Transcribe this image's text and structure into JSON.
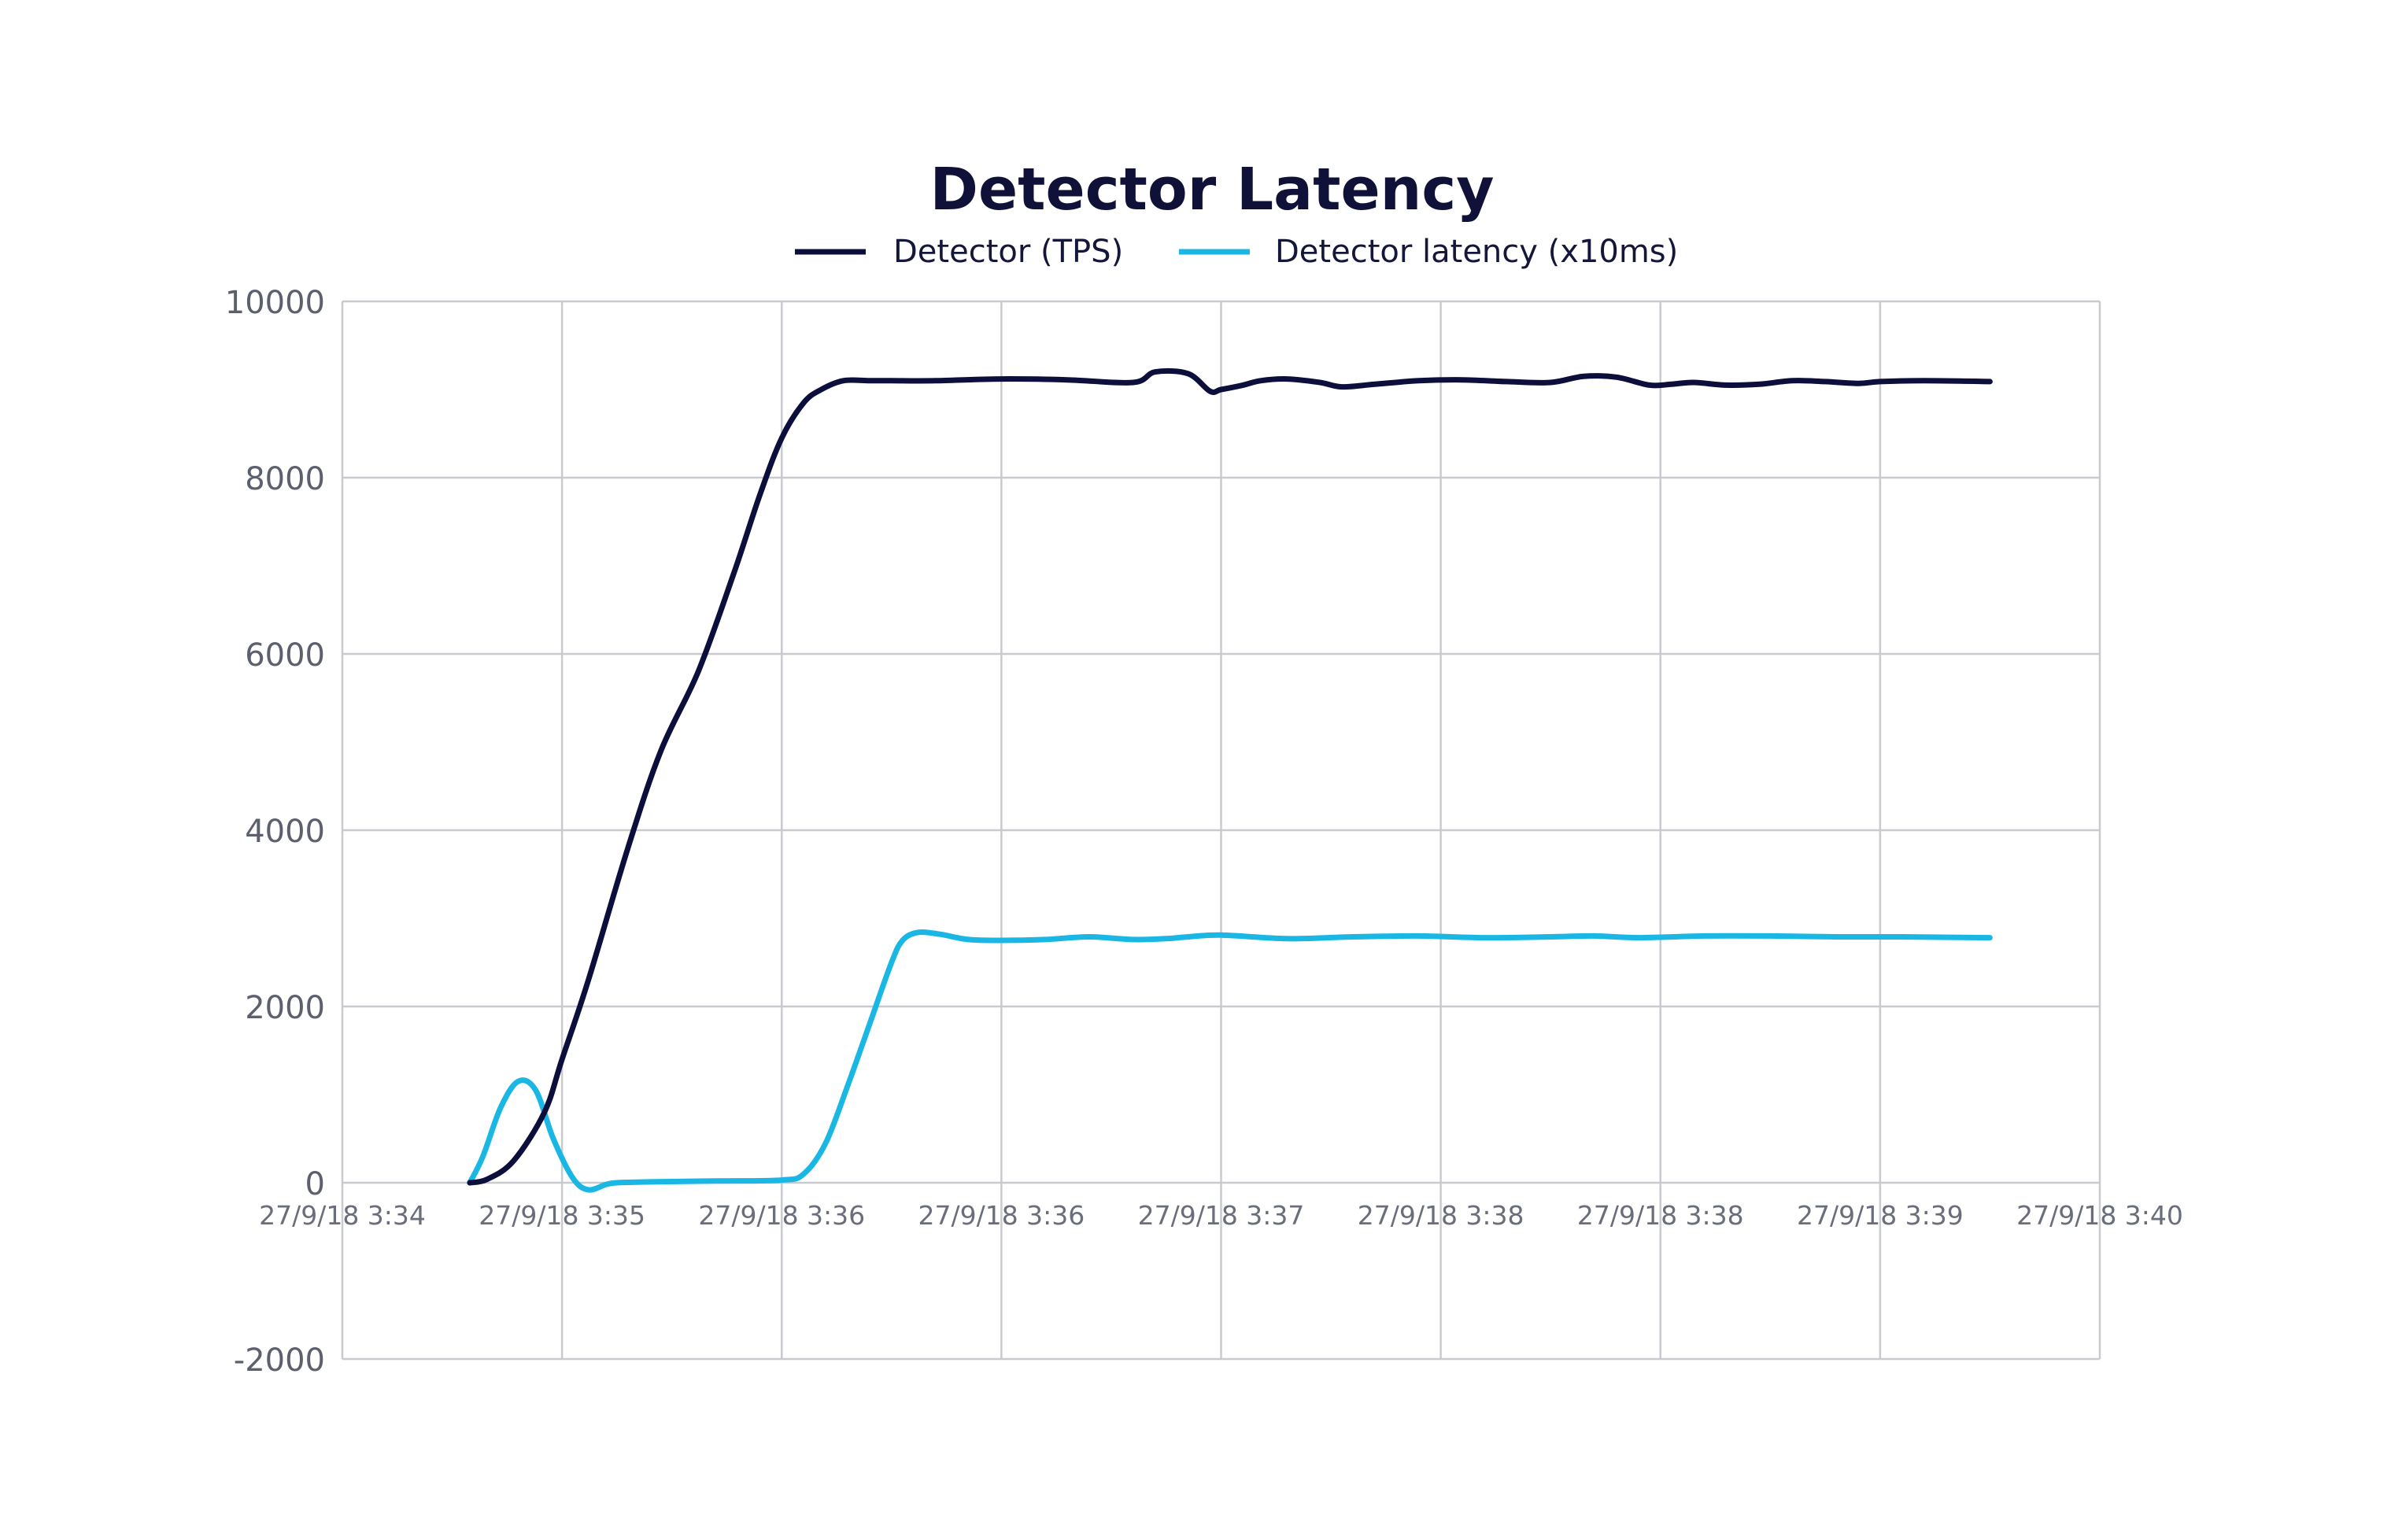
{
  "chart_data": {
    "type": "line",
    "title": "Detector Latency",
    "xlabel": "",
    "ylabel": "",
    "ylim": [
      -2000,
      10000
    ],
    "yticks": [
      "10000",
      "8000",
      "6000",
      "4000",
      "2000",
      "0",
      "-2000"
    ],
    "x_tick_labels": [
      "27/9/18 3:34",
      "27/9/18 3:35",
      "27/9/18 3:36",
      "27/9/18 3:36",
      "27/9/18 3:37",
      "27/9/18 3:38",
      "27/9/18 3:38",
      "27/9/18 3:39",
      "27/9/18 3:40"
    ],
    "grid": true,
    "legend_position": "top-center",
    "series": [
      {
        "name": "Detector (TPS)",
        "color": "#0c0f3b",
        "x": [
          0.58,
          0.66,
          0.78,
          0.92,
          1.0,
          1.12,
          1.3,
          1.45,
          1.62,
          1.78,
          1.9,
          2.0,
          2.1,
          2.18,
          2.28,
          2.4,
          2.5,
          2.7,
          3.0,
          3.3,
          3.6,
          3.7,
          3.85,
          3.95,
          4.0,
          4.1,
          4.18,
          4.3,
          4.45,
          4.55,
          4.7,
          4.9,
          5.1,
          5.3,
          5.5,
          5.65,
          5.8,
          5.95,
          6.05,
          6.15,
          6.3,
          6.45,
          6.6,
          6.75,
          6.9,
          7.0,
          7.2,
          7.5
        ],
        "values": [
          0,
          40,
          250,
          800,
          1400,
          2300,
          3800,
          4900,
          5800,
          6900,
          7800,
          8450,
          8850,
          9000,
          9100,
          9100,
          9100,
          9100,
          9120,
          9110,
          9080,
          9200,
          9180,
          8980,
          9000,
          9050,
          9100,
          9120,
          9080,
          9030,
          9060,
          9100,
          9110,
          9090,
          9080,
          9150,
          9140,
          9050,
          9060,
          9080,
          9050,
          9060,
          9100,
          9090,
          9070,
          9090,
          9100,
          9090
        ]
      },
      {
        "name": "Detector latency (x10ms)",
        "color": "#1bb7e4",
        "x": [
          0.58,
          0.64,
          0.72,
          0.8,
          0.88,
          0.96,
          1.05,
          1.12,
          1.2,
          1.25,
          1.4,
          1.7,
          2.0,
          2.1,
          2.2,
          2.3,
          2.4,
          2.5,
          2.55,
          2.62,
          2.72,
          2.85,
          3.0,
          3.2,
          3.4,
          3.6,
          3.75,
          3.85,
          4.0,
          4.3,
          4.6,
          4.9,
          5.2,
          5.5,
          5.7,
          5.9,
          6.2,
          6.5,
          6.8,
          7.1,
          7.5
        ],
        "values": [
          0,
          300,
          850,
          1150,
          1050,
          500,
          50,
          -80,
          -20,
          0,
          10,
          20,
          30,
          100,
          450,
          1100,
          1800,
          2500,
          2750,
          2840,
          2820,
          2760,
          2750,
          2760,
          2790,
          2760,
          2770,
          2790,
          2810,
          2770,
          2790,
          2800,
          2780,
          2790,
          2800,
          2780,
          2800,
          2800,
          2790,
          2790,
          2780
        ]
      }
    ]
  }
}
